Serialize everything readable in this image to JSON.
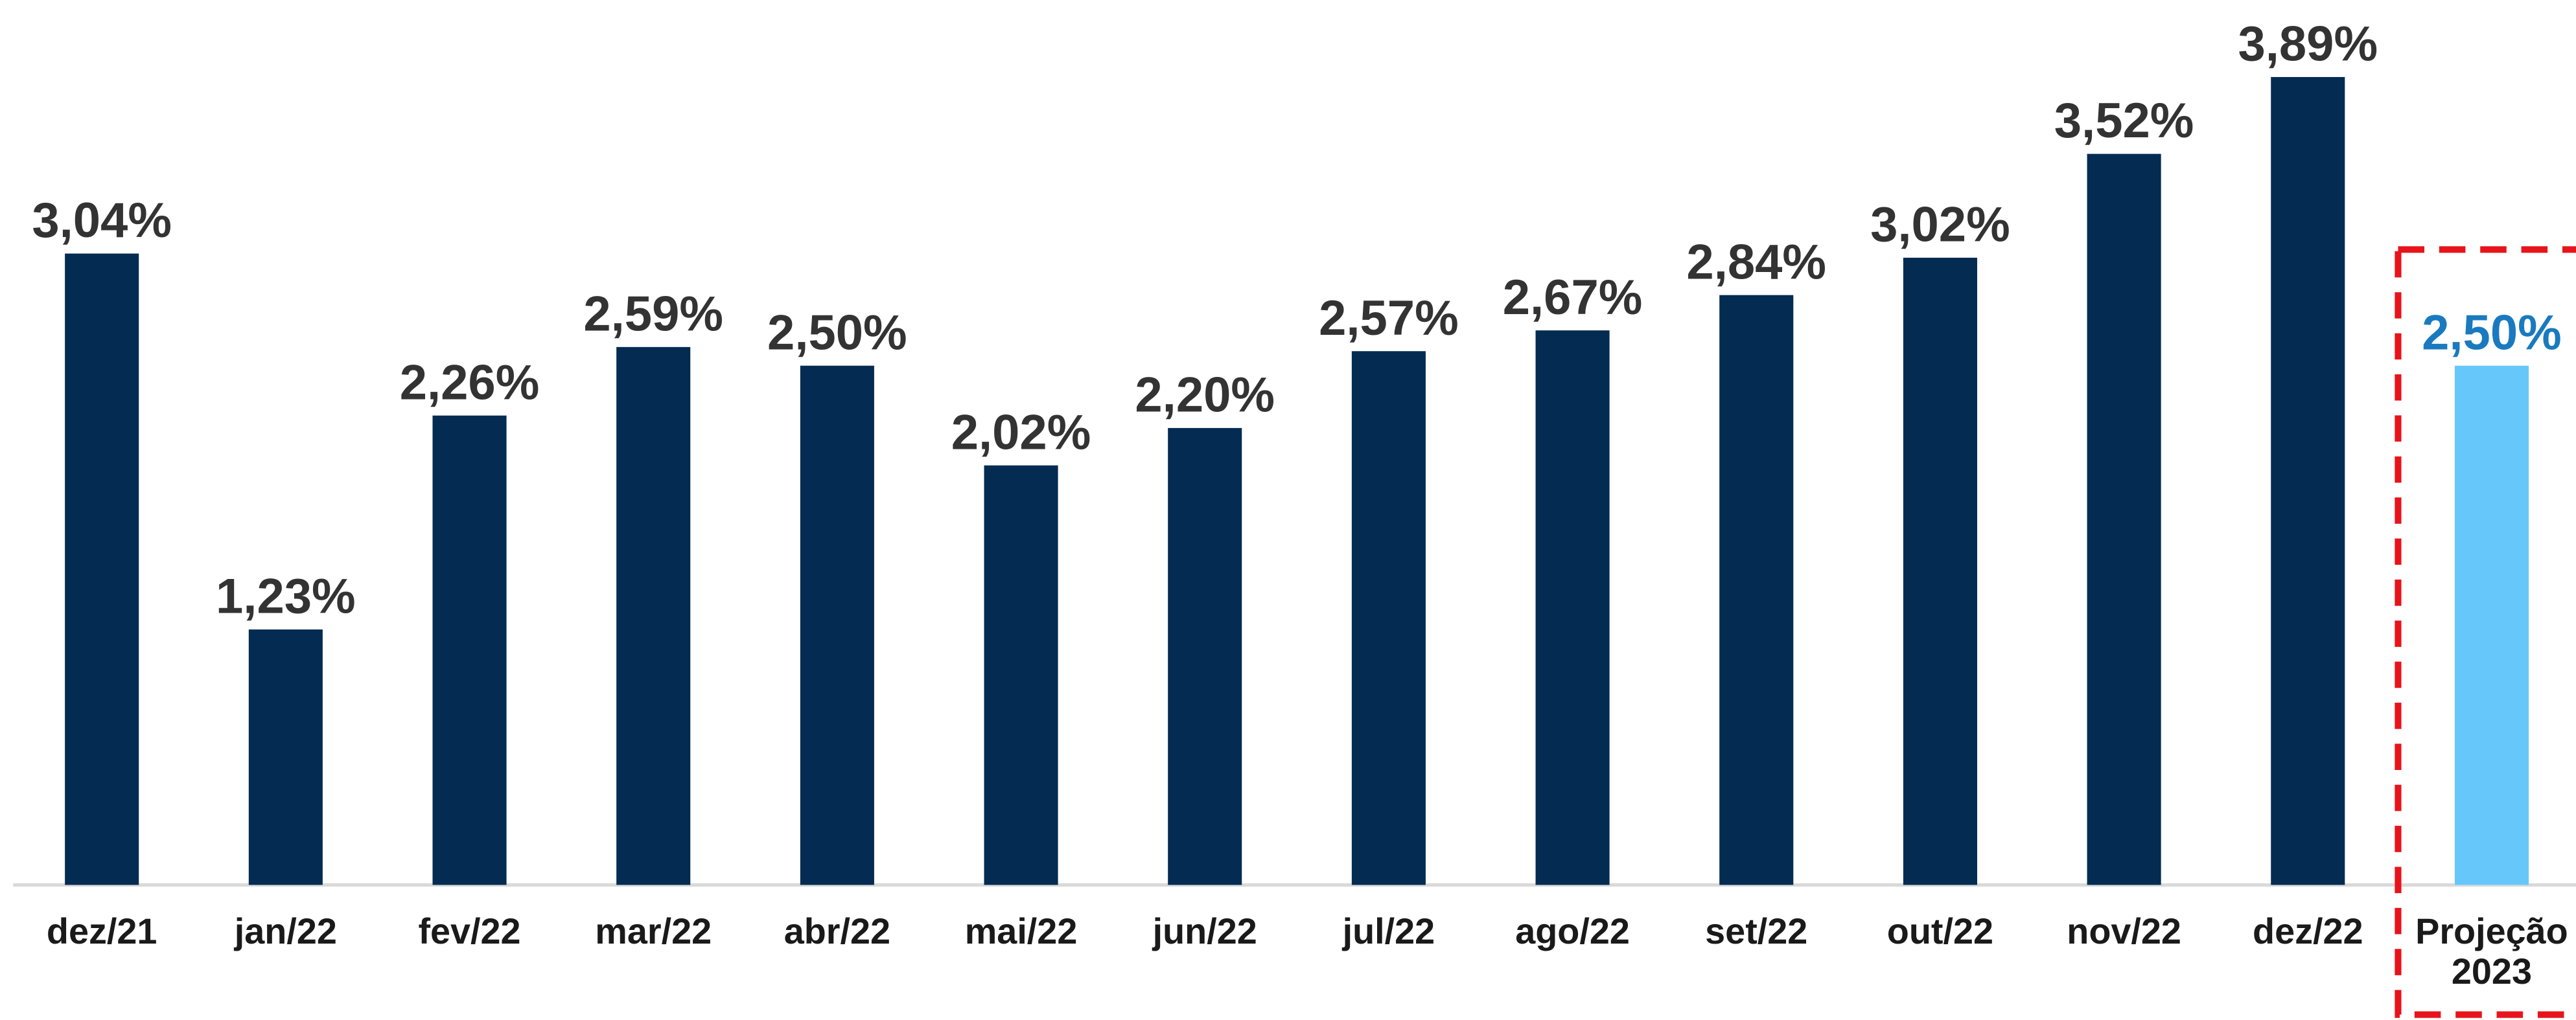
{
  "chart_data": {
    "type": "bar",
    "categories": [
      "dez/21",
      "jan/22",
      "fev/22",
      "mar/22",
      "abr/22",
      "mai/22",
      "jun/22",
      "jul/22",
      "ago/22",
      "set/22",
      "out/22",
      "nov/22",
      "dez/22",
      "Projeção 2023"
    ],
    "values": [
      3.04,
      1.23,
      2.26,
      2.59,
      2.5,
      2.02,
      2.2,
      2.57,
      2.67,
      2.84,
      3.02,
      3.52,
      3.89,
      2.5
    ],
    "value_labels": [
      "3,04%",
      "1,23%",
      "2,26%",
      "2,59%",
      "2,50%",
      "2,02%",
      "2,20%",
      "2,57%",
      "2,67%",
      "2,84%",
      "3,02%",
      "3,52%",
      "3,89%",
      "2,50%"
    ],
    "colors": [
      "#042b52",
      "#042b52",
      "#042b52",
      "#042b52",
      "#042b52",
      "#042b52",
      "#042b52",
      "#042b52",
      "#042b52",
      "#042b52",
      "#042b52",
      "#042b52",
      "#042b52",
      "#66c7fa"
    ],
    "label_colors": [
      "#333333",
      "#333333",
      "#333333",
      "#333333",
      "#333333",
      "#333333",
      "#333333",
      "#333333",
      "#333333",
      "#333333",
      "#333333",
      "#333333",
      "#333333",
      "#1a7abf"
    ]
  }
}
